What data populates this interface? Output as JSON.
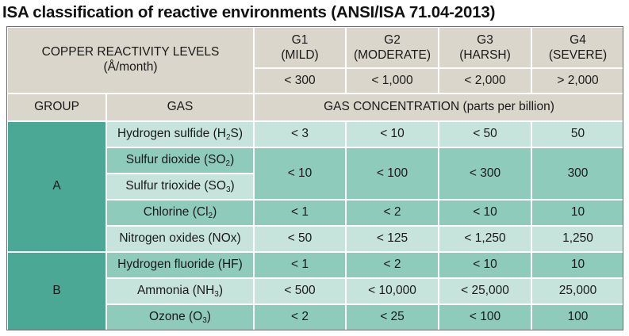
{
  "title": "ISA classification of reactive environments (ANSI/ISA 71.04-2013)",
  "header": {
    "reactivity_line1": "COPPER REACTIVITY LEVELS",
    "reactivity_line2": "(Å/month)",
    "levels": [
      {
        "code": "G1",
        "name": "(MILD)",
        "rate": "< 300"
      },
      {
        "code": "G2",
        "name": "(MODERATE)",
        "rate": "< 1,000"
      },
      {
        "code": "G3",
        "name": "(HARSH)",
        "rate": "< 2,000"
      },
      {
        "code": "G4",
        "name": "(SEVERE)",
        "rate": "> 2,000"
      }
    ],
    "group_label": "GROUP",
    "gas_label": "GAS",
    "concentration_label": "GAS CONCENTRATION (parts per billion)"
  },
  "groups": [
    "A",
    "B"
  ],
  "rows": [
    {
      "gas_pre": "Hydrogen sulfide (H",
      "gas_sub": "2",
      "gas_post": "S)",
      "values": [
        "< 3",
        "< 10",
        "< 50",
        "50"
      ]
    },
    {
      "gas_pre": "Sulfur dioxide (SO",
      "gas_sub": "2",
      "gas_post": ")",
      "gas2_pre": "Sulfur trioxide (SO",
      "gas2_sub": "3",
      "gas2_post": ")",
      "values": [
        "< 10",
        "< 100",
        "< 300",
        "300"
      ]
    },
    {
      "gas_pre": "Chlorine (Cl",
      "gas_sub": "2",
      "gas_post": ")",
      "values": [
        "< 1",
        "< 2",
        "< 10",
        "10"
      ]
    },
    {
      "gas_pre": "Nitrogen oxides (NOx)",
      "values": [
        "< 50",
        "< 125",
        "< 1,250",
        "1,250"
      ]
    },
    {
      "gas_pre": "Hydrogen fluoride (HF)",
      "values": [
        "< 1",
        "< 2",
        "< 10",
        "10"
      ]
    },
    {
      "gas_pre": "Ammonia (NH",
      "gas_sub": "3",
      "gas_post": ")",
      "values": [
        "< 500",
        "< 10,000",
        "< 25,000",
        "25,000"
      ]
    },
    {
      "gas_pre": "Ozone (O",
      "gas_sub": "3",
      "gas_post": ")",
      "values": [
        "< 2",
        "< 25",
        "< 100",
        "100"
      ]
    }
  ],
  "colors": {
    "header_beige": "#dbd6cb",
    "group_green": "#4aa894",
    "row_light": "#c6e4dc",
    "row_mid": "#8fcbbb"
  }
}
